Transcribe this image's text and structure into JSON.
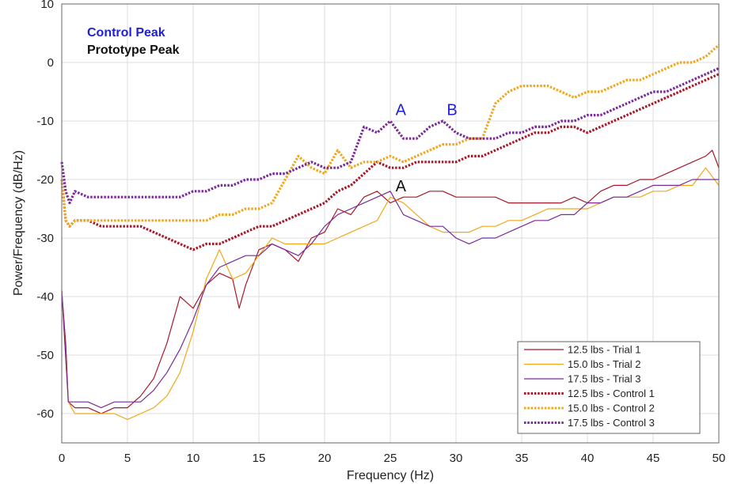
{
  "chart_data": {
    "type": "line",
    "title": "",
    "xlabel": "Frequency (Hz)",
    "ylabel": "Power/Frequency (dB/Hz)",
    "xlim": [
      0,
      50
    ],
    "ylim": [
      -65,
      10
    ],
    "xticks": [
      0,
      5,
      10,
      15,
      20,
      25,
      30,
      35,
      40,
      45,
      50
    ],
    "yticks": [
      10,
      0,
      -10,
      -20,
      -30,
      -40,
      -50,
      -60
    ],
    "grid": true,
    "legend_position": "bottom-right",
    "colors": {
      "red": "#a8182b",
      "orange": "#f0a818",
      "purple": "#7b2a9a",
      "blue": "#1f1fd6",
      "black": "#111111"
    },
    "series": [
      {
        "name": "12.5 lbs - Trial 1",
        "style": "solid",
        "color": "#a8182b",
        "x": [
          0,
          0.3,
          0.5,
          1,
          2,
          3,
          4,
          5,
          6,
          7,
          8,
          9,
          10,
          11,
          12,
          13,
          13.5,
          14,
          15,
          16,
          17,
          18,
          19,
          20,
          21,
          22,
          23,
          24,
          25,
          26,
          27,
          28,
          29,
          30,
          31,
          32,
          33,
          34,
          35,
          36,
          37,
          38,
          39,
          40,
          41,
          42,
          43,
          44,
          45,
          46,
          47,
          48,
          49,
          49.5,
          50
        ],
        "y": [
          -39,
          -48,
          -58,
          -59,
          -59,
          -60,
          -59,
          -59,
          -57,
          -54,
          -48,
          -40,
          -42,
          -38,
          -36,
          -37,
          -42,
          -38,
          -32,
          -31,
          -32,
          -34,
          -30,
          -29,
          -25,
          -26,
          -23,
          -22,
          -24,
          -23,
          -23,
          -22,
          -22,
          -23,
          -23,
          -23,
          -23,
          -24,
          -24,
          -24,
          -24,
          -24,
          -23,
          -24,
          -22,
          -21,
          -21,
          -20,
          -20,
          -19,
          -18,
          -17,
          -16,
          -15,
          -18
        ]
      },
      {
        "name": "15.0 lbs - Trial 2",
        "style": "solid",
        "color": "#f0a818",
        "x": [
          0,
          0.5,
          1,
          2,
          3,
          4,
          5,
          6,
          7,
          8,
          9,
          10,
          11,
          12,
          13,
          14,
          15,
          16,
          17,
          18,
          19,
          20,
          21,
          22,
          23,
          24,
          25,
          26,
          27,
          28,
          29,
          30,
          31,
          32,
          33,
          34,
          35,
          36,
          37,
          38,
          39,
          40,
          41,
          42,
          43,
          44,
          45,
          46,
          47,
          48,
          49,
          50
        ],
        "y": [
          -39,
          -58,
          -60,
          -60,
          -60,
          -60,
          -61,
          -60,
          -59,
          -57,
          -53,
          -46,
          -37,
          -32,
          -37,
          -36,
          -33,
          -30,
          -31,
          -31,
          -31,
          -31,
          -30,
          -29,
          -28,
          -27,
          -23,
          -24,
          -26,
          -28,
          -29,
          -29,
          -29,
          -28,
          -28,
          -27,
          -27,
          -26,
          -25,
          -25,
          -25,
          -25,
          -24,
          -23,
          -23,
          -23,
          -22,
          -22,
          -21,
          -21,
          -18,
          -21
        ]
      },
      {
        "name": "17.5 lbs - Trial 3",
        "style": "solid",
        "color": "#7b2a9a",
        "x": [
          0,
          0.5,
          1,
          2,
          3,
          4,
          5,
          6,
          7,
          8,
          9,
          10,
          11,
          12,
          13,
          14,
          15,
          16,
          17,
          18,
          19,
          20,
          21,
          22,
          23,
          24,
          25,
          26,
          27,
          28,
          29,
          30,
          31,
          32,
          33,
          34,
          35,
          36,
          37,
          38,
          39,
          40,
          41,
          42,
          43,
          44,
          45,
          46,
          47,
          48,
          49,
          50
        ],
        "y": [
          -39,
          -58,
          -58,
          -58,
          -59,
          -58,
          -58,
          -58,
          -56,
          -53,
          -49,
          -44,
          -38,
          -35,
          -34,
          -33,
          -33,
          -31,
          -32,
          -33,
          -31,
          -28,
          -26,
          -25,
          -24,
          -23,
          -22,
          -26,
          -27,
          -28,
          -28,
          -30,
          -31,
          -30,
          -30,
          -29,
          -28,
          -27,
          -27,
          -26,
          -26,
          -24,
          -24,
          -23,
          -23,
          -22,
          -21,
          -21,
          -21,
          -20,
          -20,
          -20
        ]
      },
      {
        "name": "12.5 lbs - Control 1",
        "style": "dotted",
        "color": "#a8182b",
        "x": [
          0,
          0.3,
          0.6,
          1,
          2,
          3,
          4,
          5,
          6,
          7,
          8,
          9,
          10,
          11,
          12,
          13,
          14,
          15,
          16,
          17,
          18,
          19,
          20,
          21,
          22,
          23,
          24,
          25,
          26,
          27,
          28,
          29,
          30,
          31,
          32,
          33,
          34,
          35,
          36,
          37,
          38,
          39,
          40,
          41,
          42,
          43,
          44,
          45,
          46,
          47,
          48,
          49,
          50
        ],
        "y": [
          -20,
          -27,
          -28,
          -27,
          -27,
          -28,
          -28,
          -28,
          -28,
          -29,
          -30,
          -31,
          -32,
          -31,
          -31,
          -30,
          -29,
          -28,
          -28,
          -27,
          -26,
          -25,
          -24,
          -22,
          -21,
          -19,
          -17,
          -18,
          -18,
          -17,
          -17,
          -17,
          -17,
          -16,
          -16,
          -15,
          -14,
          -13,
          -12,
          -12,
          -11,
          -11,
          -12,
          -11,
          -10,
          -9,
          -8,
          -7,
          -6,
          -5,
          -4,
          -3,
          -2
        ]
      },
      {
        "name": "15.0 lbs - Control 2",
        "style": "dotted",
        "color": "#f0a818",
        "x": [
          0,
          0.3,
          0.6,
          1,
          2,
          3,
          4,
          5,
          6,
          7,
          8,
          9,
          10,
          11,
          12,
          13,
          14,
          15,
          16,
          17,
          18,
          19,
          20,
          21,
          22,
          23,
          24,
          25,
          26,
          27,
          28,
          29,
          30,
          31,
          32,
          33,
          34,
          35,
          36,
          37,
          38,
          39,
          40,
          41,
          42,
          43,
          44,
          45,
          46,
          47,
          48,
          49,
          50
        ],
        "y": [
          -20,
          -27,
          -28,
          -27,
          -27,
          -27,
          -27,
          -27,
          -27,
          -27,
          -27,
          -27,
          -27,
          -27,
          -26,
          -26,
          -25,
          -25,
          -24,
          -20,
          -16,
          -18,
          -19,
          -15,
          -18,
          -17,
          -17,
          -16,
          -17,
          -16,
          -15,
          -14,
          -14,
          -13,
          -13,
          -7,
          -5,
          -4,
          -4,
          -4,
          -5,
          -6,
          -5,
          -5,
          -4,
          -3,
          -3,
          -2,
          -1,
          0,
          0,
          1,
          3
        ]
      },
      {
        "name": "17.5 lbs - Control 3",
        "style": "dotted",
        "color": "#7b2a9a",
        "x": [
          0,
          0.3,
          0.6,
          1,
          2,
          3,
          4,
          5,
          6,
          7,
          8,
          9,
          10,
          11,
          12,
          13,
          14,
          15,
          16,
          17,
          18,
          19,
          20,
          21,
          22,
          23,
          24,
          25,
          26,
          27,
          28,
          29,
          30,
          31,
          32,
          33,
          34,
          35,
          36,
          37,
          38,
          39,
          40,
          41,
          42,
          43,
          44,
          45,
          46,
          47,
          48,
          49,
          50
        ],
        "y": [
          -17,
          -22,
          -24,
          -22,
          -23,
          -23,
          -23,
          -23,
          -23,
          -23,
          -23,
          -23,
          -22,
          -22,
          -21,
          -21,
          -20,
          -20,
          -19,
          -19,
          -18,
          -17,
          -18,
          -18,
          -17,
          -11,
          -12,
          -10,
          -13,
          -13,
          -11,
          -10,
          -12,
          -13,
          -13,
          -13,
          -12,
          -12,
          -11,
          -11,
          -10,
          -10,
          -9,
          -9,
          -8,
          -7,
          -6,
          -5,
          -5,
          -4,
          -3,
          -2,
          -1
        ]
      }
    ],
    "annotations": [
      {
        "text": "A",
        "x": 25.8,
        "y": -9,
        "color": "#1f1fd6"
      },
      {
        "text": "B",
        "x": 29.7,
        "y": -9,
        "color": "#1f1fd6"
      },
      {
        "text": "A",
        "x": 25.8,
        "y": -22,
        "color": "#111111"
      }
    ],
    "peak_labels": [
      {
        "text": "Control Peak",
        "color": "#1f1fd6"
      },
      {
        "text": "Prototype Peak",
        "color": "#111111"
      }
    ]
  }
}
